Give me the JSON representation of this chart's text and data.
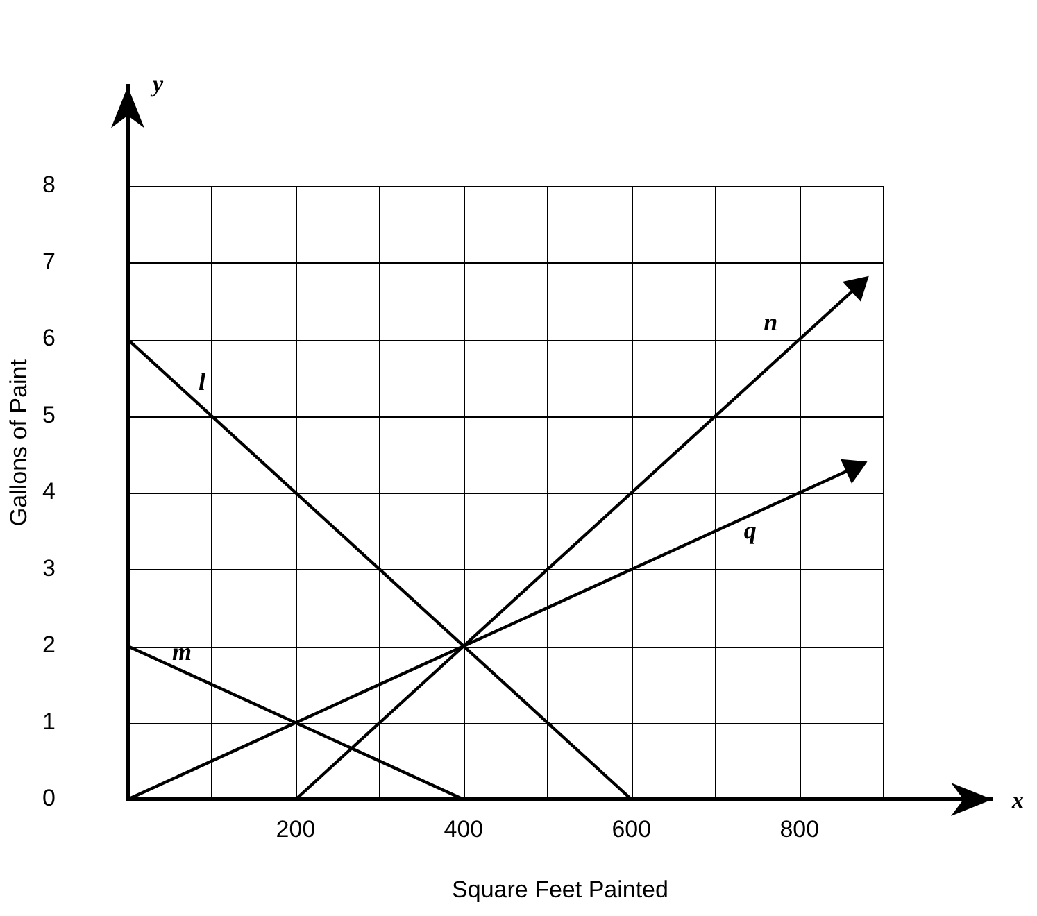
{
  "chart_data": {
    "type": "line",
    "xlabel": "Square Feet Painted",
    "ylabel": "Gallons of Paint",
    "xlim": [
      0,
      1030
    ],
    "ylim": [
      0,
      9.3
    ],
    "xticks": [
      {
        "value": 0,
        "label": null
      },
      {
        "value": 100,
        "label": null
      },
      200,
      {
        "value": 300,
        "label": null
      },
      400,
      {
        "value": 500,
        "label": null
      },
      600,
      {
        "value": 700,
        "label": null
      },
      800,
      {
        "value": 900,
        "label": null
      }
    ],
    "yticks": [
      0,
      1,
      2,
      3,
      4,
      5,
      6,
      7,
      8
    ],
    "grid": true,
    "legend": false,
    "line_style": "solid",
    "annotations": [
      "x",
      "y"
    ],
    "series": [
      {
        "name": "l",
        "color": "#000000",
        "x": [
          0,
          600
        ],
        "values": [
          6,
          0
        ]
      },
      {
        "name": "m",
        "color": "#000000",
        "x": [
          0,
          400
        ],
        "values": [
          2,
          0
        ]
      },
      {
        "name": "n",
        "color": "#000000",
        "x": [
          200,
          869
        ],
        "values": [
          0,
          6.69
        ]
      },
      {
        "name": "q",
        "color": "#000000",
        "x": [
          0,
          864
        ],
        "values": [
          0,
          4.32
        ]
      }
    ]
  }
}
